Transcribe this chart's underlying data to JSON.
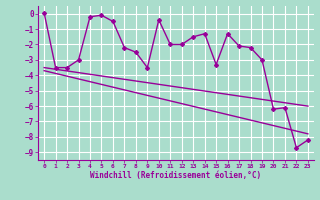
{
  "xlabel": "Windchill (Refroidissement éolien,°C)",
  "line_color": "#990099",
  "bg_color": "#aaddcc",
  "grid_color": "#ffffff",
  "xlim": [
    -0.5,
    23.5
  ],
  "ylim": [
    -9.5,
    0.5
  ],
  "xticks": [
    0,
    1,
    2,
    3,
    4,
    5,
    6,
    7,
    8,
    9,
    10,
    11,
    12,
    13,
    14,
    15,
    16,
    17,
    18,
    19,
    20,
    21,
    22,
    23
  ],
  "yticks": [
    0,
    -1,
    -2,
    -3,
    -4,
    -5,
    -6,
    -7,
    -8,
    -9
  ],
  "series1_x": [
    0,
    1,
    2,
    3,
    4,
    5,
    6,
    7,
    8,
    9,
    10,
    11,
    12,
    13,
    14,
    15,
    16,
    17,
    18,
    19,
    20,
    21,
    22,
    23
  ],
  "series1_y": [
    0.05,
    -3.5,
    -3.5,
    -3.0,
    -0.2,
    -0.1,
    -0.5,
    -2.2,
    -2.5,
    -3.5,
    -0.4,
    -2.0,
    -2.0,
    -1.5,
    -1.3,
    -3.3,
    -1.3,
    -2.1,
    -2.2,
    -3.0,
    -6.2,
    -6.1,
    -8.7,
    -8.2
  ],
  "series2_x": [
    0,
    23
  ],
  "series2_y": [
    -3.5,
    -6.0
  ],
  "series3_x": [
    0,
    23
  ],
  "series3_y": [
    -3.7,
    -7.8
  ]
}
